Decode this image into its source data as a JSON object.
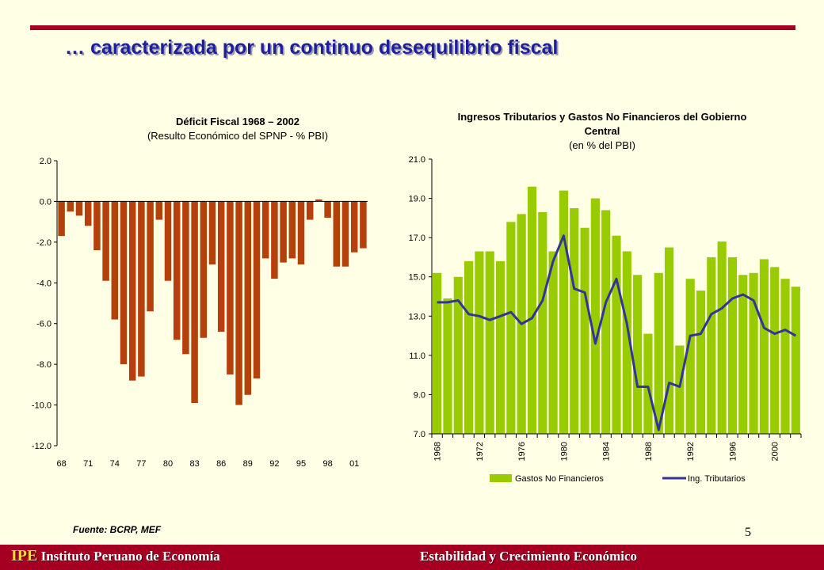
{
  "header": {
    "title": "… caracterizada por un continuo desequilibrio fiscal"
  },
  "colors": {
    "accent": "#A50021",
    "title": "#1F1F9E",
    "deficit_bar": "#B5400C",
    "gastos_bar": "#99CC00",
    "ingresos_line": "#333399",
    "background": "#FFFFE6"
  },
  "chart_data": [
    {
      "type": "bar",
      "title": "Déficit Fiscal 1968 – 2002",
      "subtitle": "(Resulto Económico del SPNP - % PBI)",
      "xlabel": "",
      "ylabel": "",
      "ylim": [
        -12.0,
        2.0
      ],
      "yticks": [
        "2.0",
        "0.0",
        "-2.0",
        "-4.0",
        "-6.0",
        "-8.0",
        "-10.0",
        "-12.0"
      ],
      "x_tick_labels": [
        "68",
        "71",
        "74",
        "77",
        "80",
        "83",
        "86",
        "89",
        "92",
        "95",
        "98",
        "01"
      ],
      "years": [
        1968,
        1969,
        1970,
        1971,
        1972,
        1973,
        1974,
        1975,
        1976,
        1977,
        1978,
        1979,
        1980,
        1981,
        1982,
        1983,
        1984,
        1985,
        1986,
        1987,
        1988,
        1989,
        1990,
        1991,
        1992,
        1993,
        1994,
        1995,
        1996,
        1997,
        1998,
        1999,
        2000,
        2001,
        2002
      ],
      "values": [
        -1.7,
        -0.5,
        -0.7,
        -1.2,
        -2.4,
        -3.9,
        -5.8,
        -8.0,
        -8.8,
        -8.6,
        -5.4,
        -0.9,
        -3.9,
        -6.8,
        -7.5,
        -9.9,
        -6.7,
        -3.1,
        -6.4,
        -8.5,
        -10.0,
        -9.5,
        -8.7,
        -2.8,
        -3.8,
        -3.0,
        -2.8,
        -3.1,
        -0.9,
        0.1,
        -0.8,
        -3.2,
        -3.2,
        -2.5,
        -2.3
      ]
    },
    {
      "type": "bar+line",
      "title": "Ingresos Tributarios y Gastos No Financieros del Gobierno Central",
      "subtitle": "(en % del PBI)",
      "ylim": [
        7.0,
        21.0
      ],
      "yticks": [
        "21.0",
        "19.0",
        "17.0",
        "15.0",
        "13.0",
        "11.0",
        "9.0",
        "7.0"
      ],
      "x_tick_labels": [
        "1968",
        "1972",
        "1976",
        "1980",
        "1984",
        "1988",
        "1992",
        "1996",
        "2000"
      ],
      "years": [
        1968,
        1969,
        1970,
        1971,
        1972,
        1973,
        1974,
        1975,
        1976,
        1977,
        1978,
        1979,
        1980,
        1981,
        1982,
        1983,
        1984,
        1985,
        1986,
        1987,
        1988,
        1989,
        1990,
        1991,
        1992,
        1993,
        1994,
        1995,
        1996,
        1997,
        1998,
        1999,
        2000,
        2001,
        2002
      ],
      "series": [
        {
          "name": "Gastos No Financieros",
          "kind": "bar",
          "values": [
            15.2,
            13.9,
            15.0,
            15.8,
            16.3,
            16.3,
            15.8,
            17.8,
            18.2,
            19.6,
            18.3,
            16.3,
            19.4,
            18.5,
            17.5,
            19.0,
            18.4,
            17.1,
            16.3,
            15.1,
            12.1,
            15.2,
            16.5,
            11.5,
            14.9,
            14.3,
            16.0,
            16.8,
            16.0,
            15.1,
            15.2,
            15.9,
            15.5,
            14.9,
            14.5
          ]
        },
        {
          "name": "Ing. Tributarios",
          "kind": "line",
          "values": [
            13.7,
            13.7,
            13.8,
            13.1,
            13.0,
            12.8,
            13.0,
            13.2,
            12.6,
            12.9,
            13.8,
            15.8,
            17.1,
            14.4,
            14.2,
            11.6,
            13.7,
            14.9,
            12.6,
            9.4,
            9.4,
            7.2,
            9.6,
            9.4,
            12.0,
            12.1,
            13.1,
            13.4,
            13.9,
            14.1,
            13.8,
            12.4,
            12.1,
            12.3,
            12.0
          ]
        }
      ]
    }
  ],
  "source": "Fuente: BCRP, MEF",
  "page_number": "5",
  "footer": {
    "brand": "IPE",
    "institute": "Instituto Peruano de Economía",
    "section": "Estabilidad y Crecimiento Económico"
  }
}
